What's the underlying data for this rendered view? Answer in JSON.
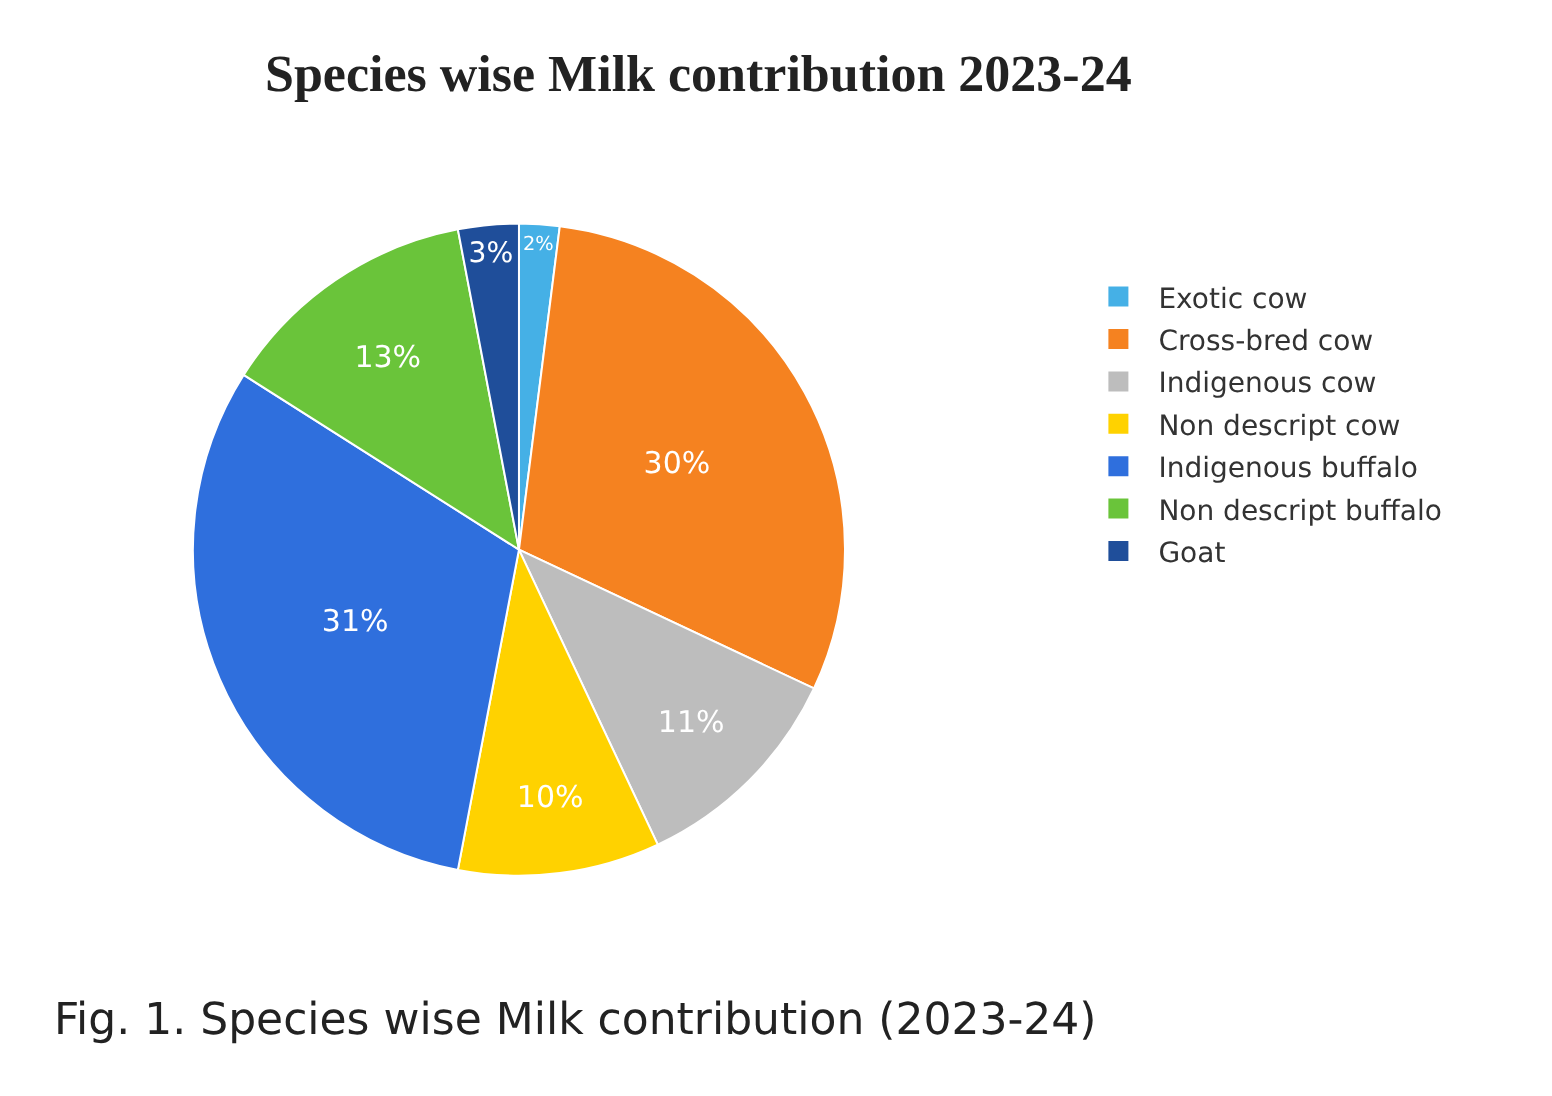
{
  "chart_data": {
    "type": "pie",
    "title": "Species wise Milk contribution 2023-24",
    "categories": [
      "Exotic cow",
      "Cross-bred cow",
      "Indigenous cow",
      "Non descript cow",
      "Indigenous buffalo",
      "Non descript buffalo",
      "Goat"
    ],
    "values": [
      2,
      30,
      11,
      10,
      31,
      13,
      3
    ],
    "value_labels": [
      "2%",
      "30%",
      "11%",
      "10%",
      "31%",
      "13%",
      "3%"
    ],
    "colors": [
      "#45b0e6",
      "#f58220",
      "#bdbdbd",
      "#ffd200",
      "#2f6fdd",
      "#6ac43a",
      "#1f4e9a"
    ],
    "legend": "right",
    "annotations": [
      "Fig. 1. Species wise Milk contribution (2023-24)"
    ]
  }
}
